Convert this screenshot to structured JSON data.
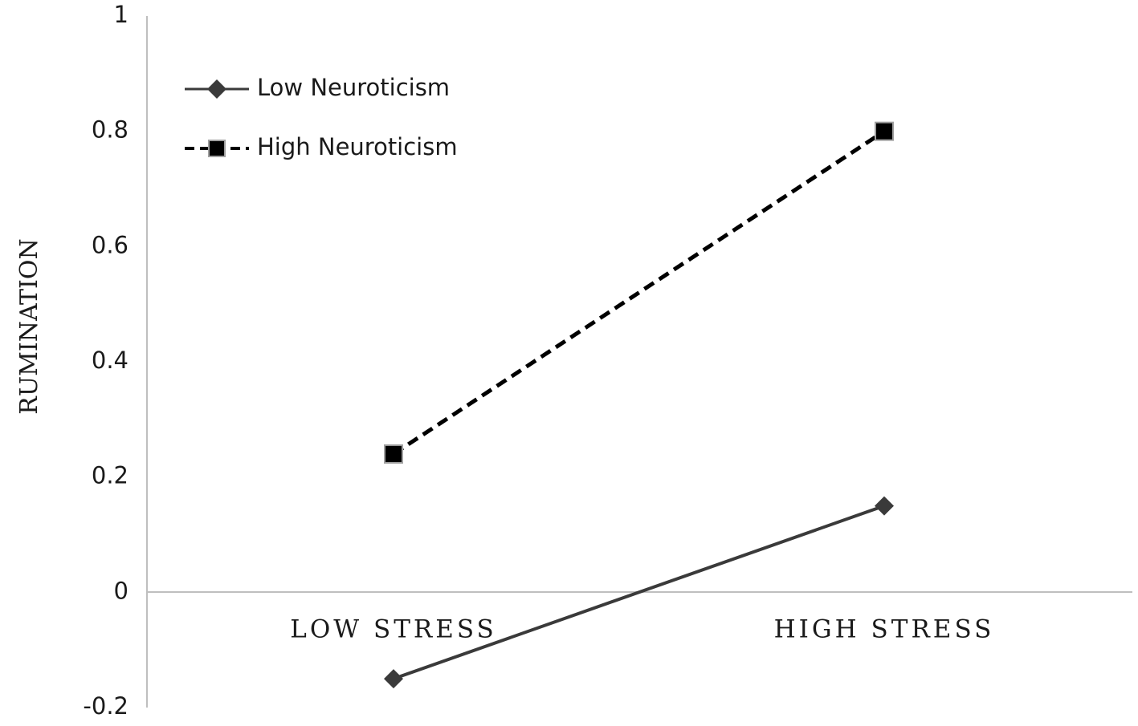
{
  "chart_data": {
    "type": "line",
    "title": "",
    "xlabel": "",
    "ylabel": "RUMINATION",
    "categories": [
      "LOW STRESS",
      "HIGH STRESS"
    ],
    "ylim": [
      -0.2,
      1
    ],
    "yticks": [
      "-0.2",
      "0",
      "0.2",
      "0.4",
      "0.6",
      "0.8",
      "1"
    ],
    "ytick_values": [
      -0.2,
      0,
      0.2,
      0.4,
      0.6,
      0.8,
      1
    ],
    "grid": false,
    "legend_position": "top-left",
    "series": [
      {
        "name": "Low Neuroticism",
        "values": [
          -0.15,
          0.15
        ],
        "line_style": "solid",
        "marker": "diamond",
        "color": "#3a3a3a"
      },
      {
        "name": "High Neuroticism",
        "values": [
          0.24,
          0.8
        ],
        "line_style": "dashed",
        "marker": "square",
        "color": "#000000"
      }
    ]
  }
}
